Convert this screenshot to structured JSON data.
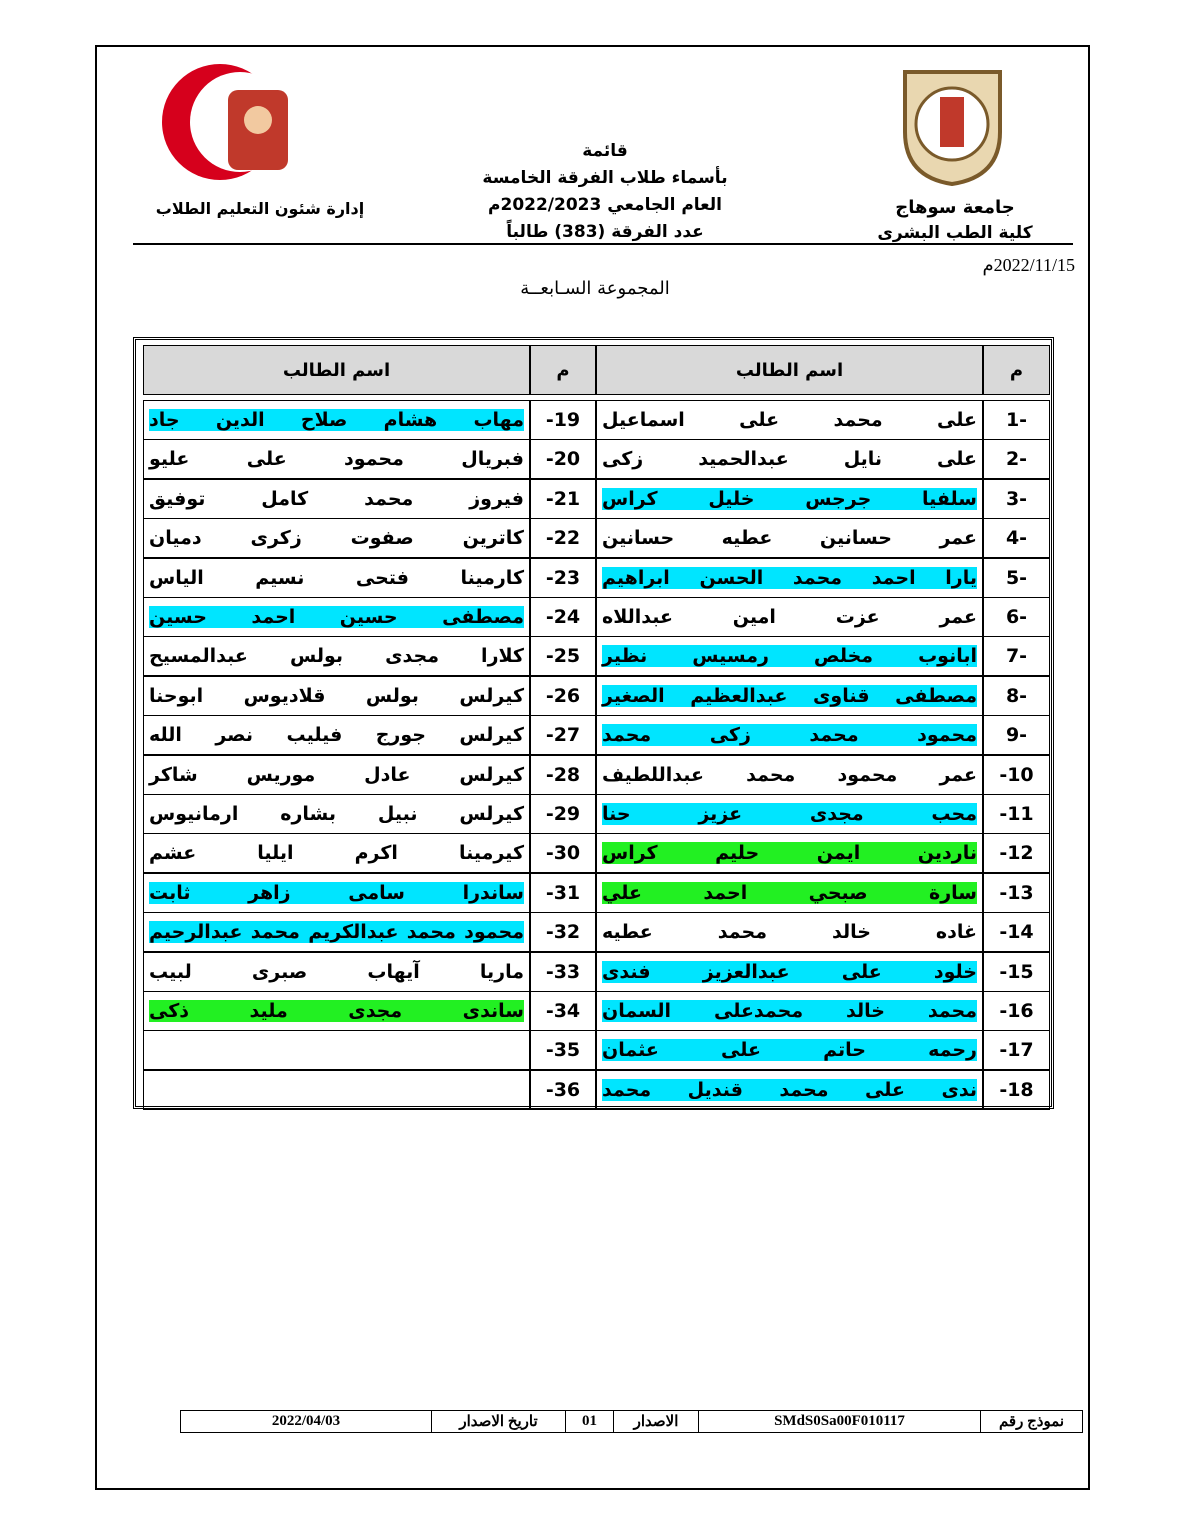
{
  "header": {
    "department": "إدارة شئون التعليم الطلاب",
    "title_lines": [
      "قائمة",
      "بأسماء طلاب الفرقة الخامسة",
      "العام الجامعي 2022/2023م",
      "عدد الفرقة (383) طالباً"
    ],
    "university": "جامعة سوهاج",
    "faculty": "كلية الطب البشرى",
    "date": "2022/11/15م"
  },
  "group_title": "المجموعة السـابعــة",
  "table": {
    "header": {
      "num": "م",
      "name": "اسم الطالب"
    },
    "right_rows": [
      {
        "num": "1-",
        "name": "على محمد على اسماعيل"
      },
      {
        "num": "2-",
        "name": "على نايل عبدالحميد زكى"
      },
      {
        "num": "3-",
        "name": "سلفيا جرجس خليل كراس",
        "highlight": "#00e5ff"
      },
      {
        "num": "4-",
        "name": "عمر حسانين عطيه حسانين"
      },
      {
        "num": "5-",
        "name": "يارا احمد محمد الحسن ابراهيم",
        "highlight": "#00e5ff"
      },
      {
        "num": "6-",
        "name": "عمر عزت امين عبداللاه"
      },
      {
        "num": "7-",
        "name": "ابانوب مخلص رمسيس نظير",
        "highlight": "#00e5ff"
      },
      {
        "num": "8-",
        "name": "مصطفى قناوى عبدالعظيم الصغير",
        "highlight": "#00e5ff"
      },
      {
        "num": "9-",
        "name": "محمود محمد زكى محمد",
        "highlight": "#00e5ff"
      },
      {
        "num": "-10",
        "name": "عمر محمود محمد عبداللطيف"
      },
      {
        "num": "-11",
        "name": "محب مجدى عزيز حنا",
        "highlight": "#00e5ff"
      },
      {
        "num": "-12",
        "name": "ناردين ايمن حليم كراس",
        "highlight": "#22f022"
      },
      {
        "num": "-13",
        "name": "سارة صبحي احمد علي",
        "highlight": "#22f022"
      },
      {
        "num": "-14",
        "name": "غاده خالد محمد عطيه"
      },
      {
        "num": "-15",
        "name": "خلود على عبدالعزيز فندى",
        "highlight": "#00e5ff"
      },
      {
        "num": "-16",
        "name": "محمد خالد محمدعلى السمان",
        "highlight": "#00e5ff"
      },
      {
        "num": "-17",
        "name": "رحمه حاتم على عثمان",
        "highlight": "#00e5ff"
      },
      {
        "num": "-18",
        "name": "ندى على محمد قنديل محمد",
        "highlight": "#00e5ff"
      }
    ],
    "left_rows": [
      {
        "num": "-19",
        "name": "مهاب هشام صلاح الدين جاد",
        "highlight": "#00e5ff"
      },
      {
        "num": "-20",
        "name": "فبريال محمود على عليو"
      },
      {
        "num": "-21",
        "name": "فيروز محمد كامل توفيق"
      },
      {
        "num": "-22",
        "name": "كاترين صفوت زكرى دميان"
      },
      {
        "num": "-23",
        "name": "كارمينا فتحى نسيم الياس"
      },
      {
        "num": "-24",
        "name": "مصطفى حسين احمد حسين",
        "highlight": "#00e5ff"
      },
      {
        "num": "-25",
        "name": "كلارا مجدى بولس عبدالمسيح"
      },
      {
        "num": "-26",
        "name": "كيرلس بولس قلاديوس ابوحنا"
      },
      {
        "num": "-27",
        "name": "كيرلس جورج فيليب نصر الله"
      },
      {
        "num": "-28",
        "name": "كيرلس عادل موريس شاكر"
      },
      {
        "num": "-29",
        "name": "كيرلس نبيل بشاره ارمانيوس"
      },
      {
        "num": "-30",
        "name": "كيرمينا اكرم ايليا عشم"
      },
      {
        "num": "-31",
        "name": "ساندرا سامى زاهر ثابت",
        "highlight": "#00e5ff"
      },
      {
        "num": "-32",
        "name": "محمود محمد عبدالكريم محمد عبدالرحيم",
        "highlight": "#00e5ff"
      },
      {
        "num": "-33",
        "name": "ماريا آيهاب صبرى لبيب"
      },
      {
        "num": "-34",
        "name": "ساندى مجدى مليد ذكى",
        "highlight": "#22f022"
      },
      {
        "num": "-35"
      },
      {
        "num": "-36"
      }
    ]
  },
  "footer": {
    "form_label": "نموذج رقم",
    "form_code": "SMdS0Sa00F010117",
    "version_label": "الاصدار",
    "version": "01",
    "issue_date_label": "تاريخ الاصدار",
    "issue_date": "2022/04/03"
  }
}
